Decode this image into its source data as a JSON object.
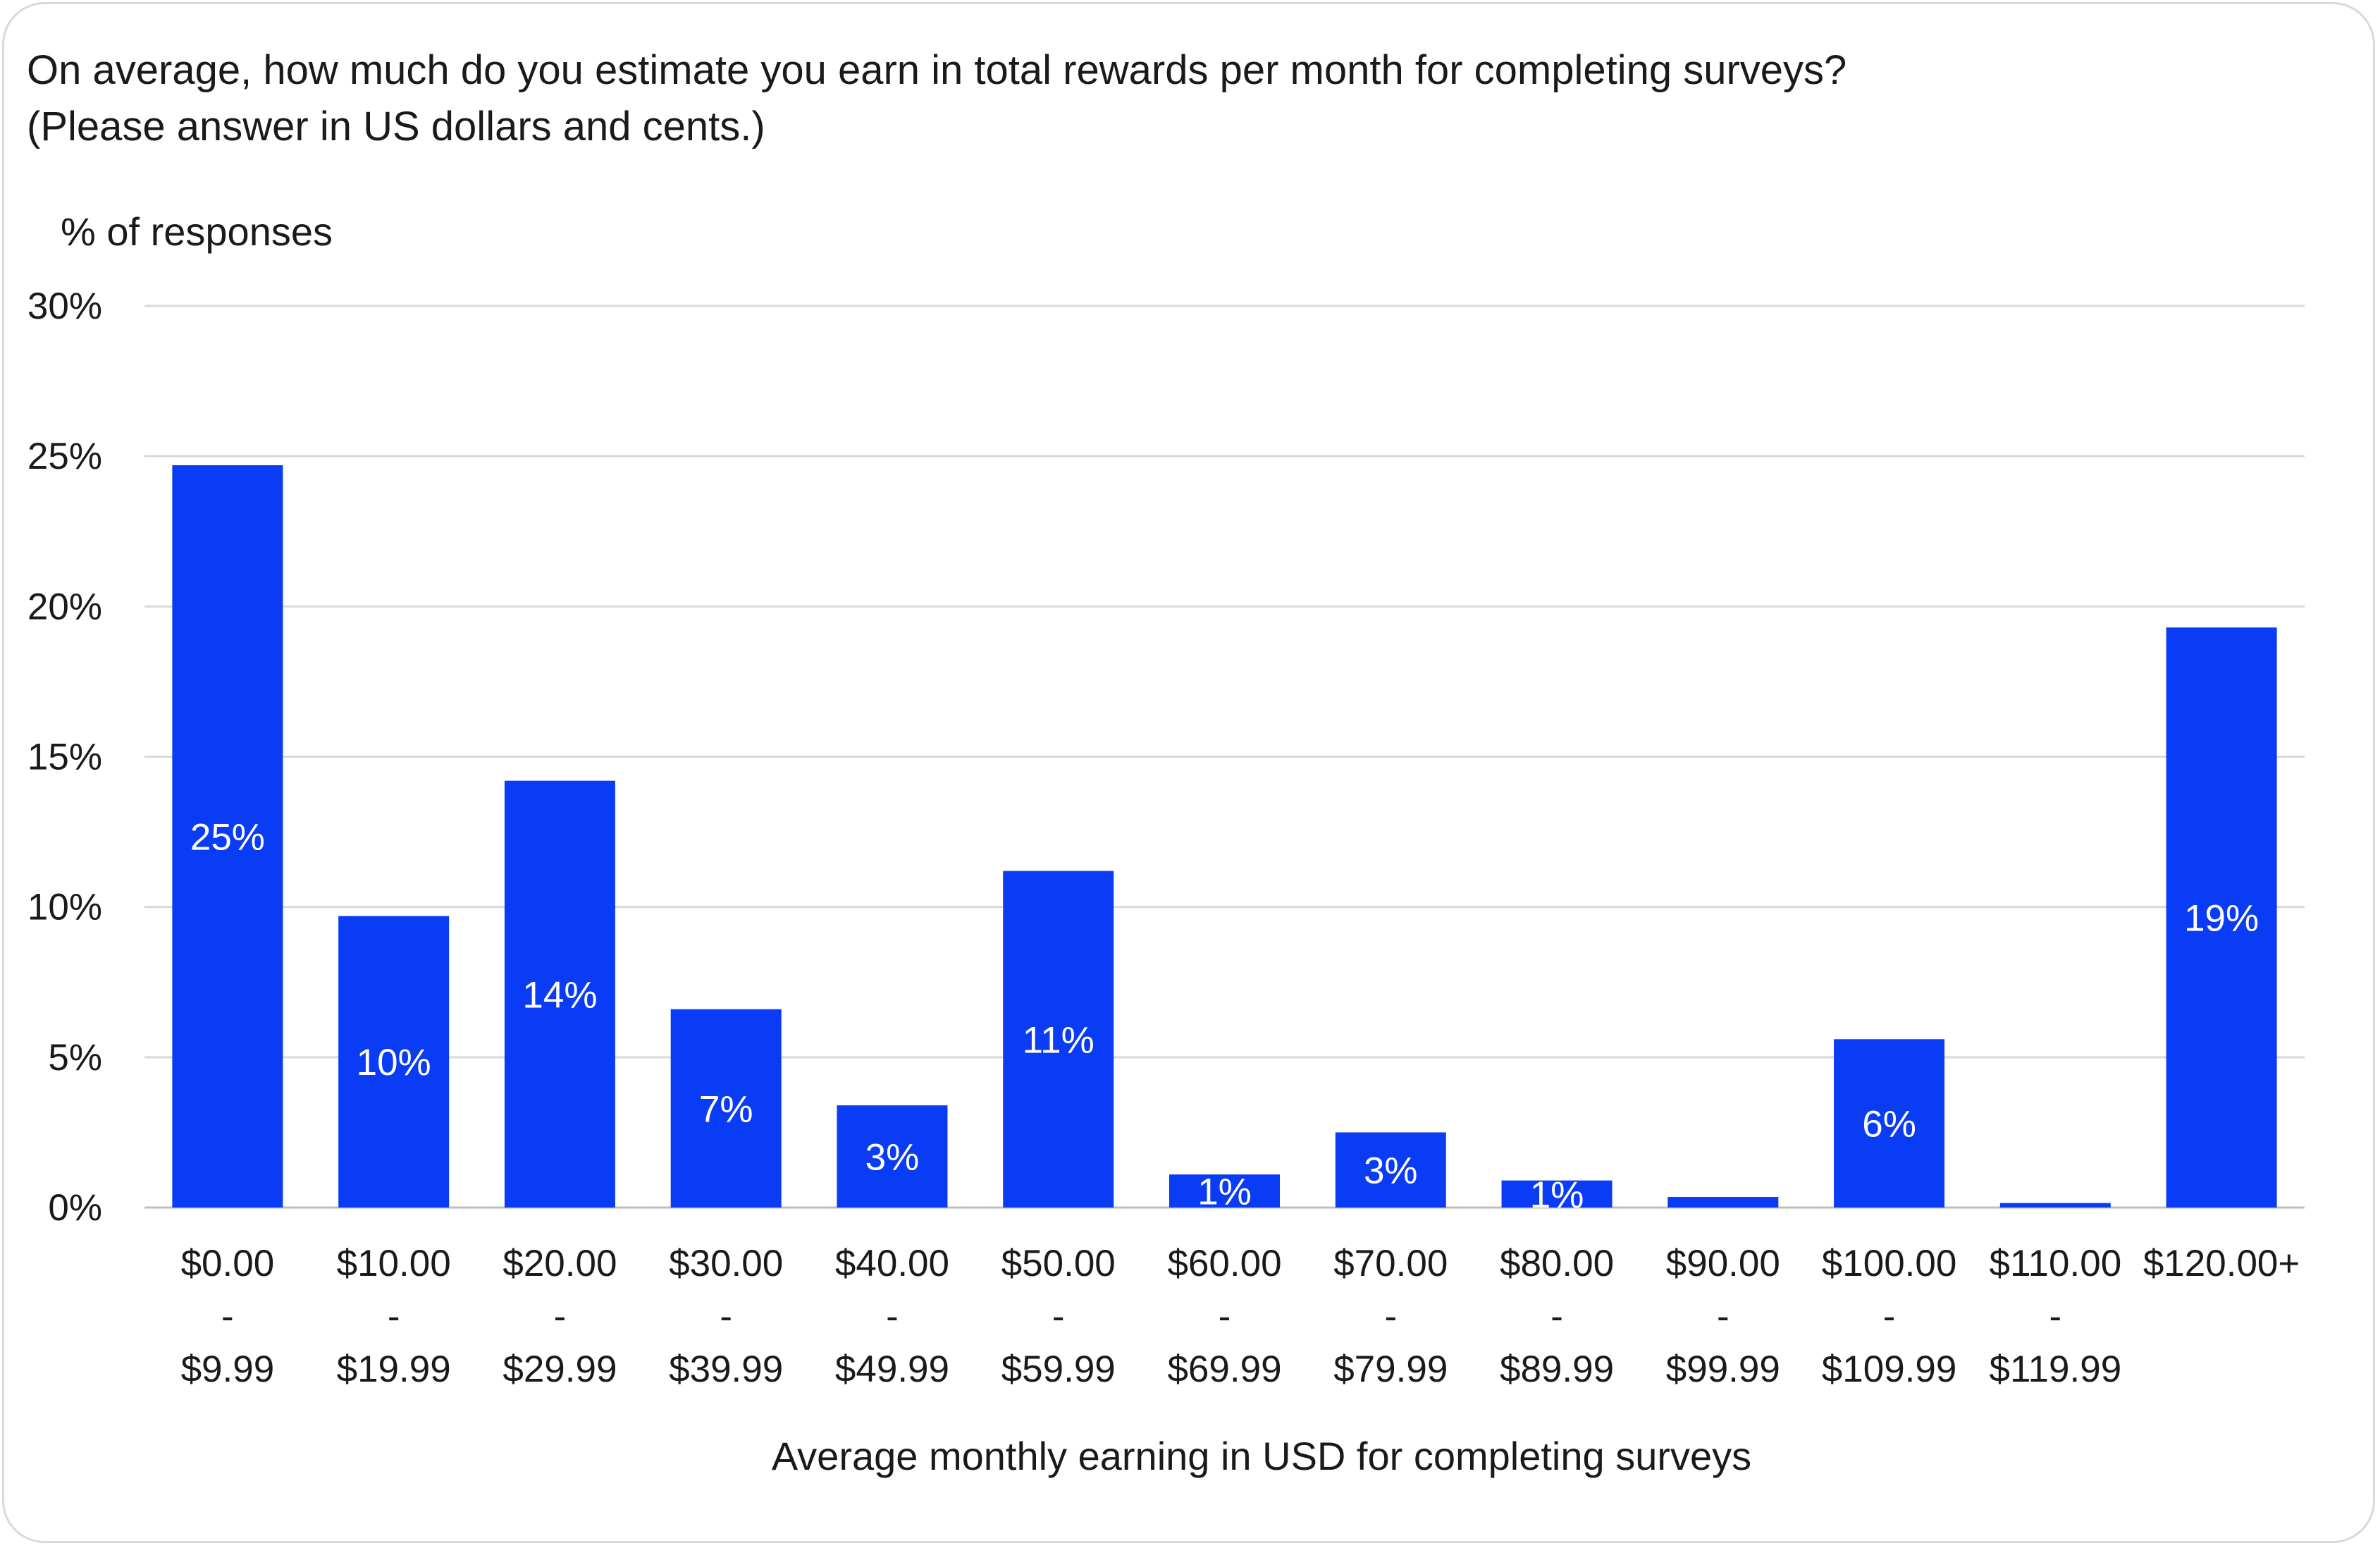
{
  "chart_data": {
    "type": "bar",
    "title_line1": "On average, how much do you estimate you earn in total rewards per month for completing surveys?",
    "title_line2": "(Please answer in US dollars and cents.)",
    "ylabel": "% of responses",
    "xlabel": "Average monthly earning in USD for completing surveys",
    "ylim": [
      0,
      30
    ],
    "yticks": [
      "0%",
      "5%",
      "10%",
      "15%",
      "20%",
      "25%",
      "30%"
    ],
    "grid": true,
    "bar_color": "#0a3cf5",
    "categories": [
      [
        "$0.00",
        "-",
        "$9.99"
      ],
      [
        "$10.00",
        "-",
        "$19.99"
      ],
      [
        "$20.00",
        "-",
        "$29.99"
      ],
      [
        "$30.00",
        "-",
        "$39.99"
      ],
      [
        "$40.00",
        "-",
        "$49.99"
      ],
      [
        "$50.00",
        "-",
        "$59.99"
      ],
      [
        "$60.00",
        "-",
        "$69.99"
      ],
      [
        "$70.00",
        "-",
        "$79.99"
      ],
      [
        "$80.00",
        "-",
        "$89.99"
      ],
      [
        "$90.00",
        "-",
        "$99.99"
      ],
      [
        "$100.00",
        "-",
        "$109.99"
      ],
      [
        "$110.00",
        "-",
        "$119.99"
      ],
      [
        "$120.00+"
      ]
    ],
    "values": [
      24.7,
      9.7,
      14.2,
      6.6,
      3.4,
      11.2,
      1.1,
      2.5,
      0.9,
      0.35,
      5.6,
      0.15,
      19.3
    ],
    "data_labels": [
      "25%",
      "10%",
      "14%",
      "7%",
      "3%",
      "11%",
      "1%",
      "3%",
      "1%",
      "",
      "6%",
      "",
      "19%"
    ]
  }
}
